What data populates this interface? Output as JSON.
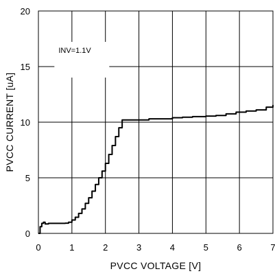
{
  "chart_data": {
    "type": "line",
    "title": "",
    "xlabel": "PVCC VOLTAGE [V]",
    "ylabel": "PVCC CURRENT [uA]",
    "xlim": [
      0,
      7
    ],
    "ylim": [
      0,
      20
    ],
    "x_ticks": [
      "0",
      "1",
      "2",
      "3",
      "4",
      "5",
      "6",
      "7"
    ],
    "y_ticks": [
      "0",
      "5",
      "10",
      "15",
      "20"
    ],
    "grid": true,
    "annotation": "INV=1.1V",
    "line_color": "#000000",
    "series": [
      {
        "x": [
          0,
          0.05,
          0.1,
          0.15,
          0.2,
          0.3,
          0.5,
          0.7,
          0.8,
          0.9,
          1.0,
          1.1,
          1.2,
          1.3,
          1.4,
          1.5,
          1.6,
          1.7,
          1.8,
          1.9,
          2.0,
          2.1,
          2.2,
          2.3,
          2.4,
          2.5,
          2.6,
          2.8,
          3.0,
          3.3,
          3.6,
          4.0,
          4.3,
          4.6,
          5.0,
          5.3,
          5.6,
          5.9,
          6.2,
          6.5,
          6.8,
          7.0
        ],
        "y": [
          0,
          0.6,
          0.9,
          1.0,
          0.85,
          0.9,
          0.9,
          0.9,
          0.92,
          1.0,
          1.2,
          1.45,
          1.8,
          2.2,
          2.7,
          3.2,
          3.8,
          4.4,
          5.0,
          5.6,
          6.3,
          7.1,
          7.9,
          8.7,
          9.5,
          10.2,
          10.2,
          10.2,
          10.2,
          10.3,
          10.3,
          10.4,
          10.45,
          10.5,
          10.55,
          10.6,
          10.75,
          10.9,
          11.0,
          11.1,
          11.35,
          11.55
        ]
      }
    ]
  }
}
